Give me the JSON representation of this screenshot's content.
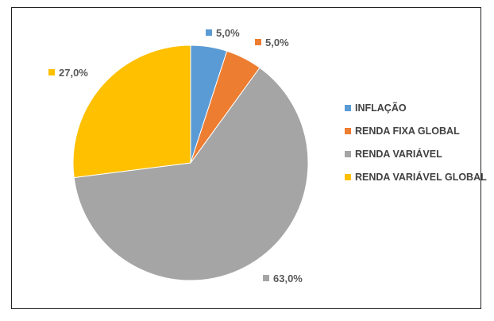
{
  "chart_data": {
    "type": "pie",
    "title": "",
    "slices": [
      {
        "name": "INFLAÇÃO",
        "value": 5.0,
        "label": "5,0%",
        "color": "#5B9BD5"
      },
      {
        "name": "RENDA FIXA GLOBAL",
        "value": 5.0,
        "label": "5,0%",
        "color": "#ED7D31"
      },
      {
        "name": "RENDA VARIÁVEL",
        "value": 63.0,
        "label": "63,0%",
        "color": "#A5A5A5"
      },
      {
        "name": "RENDA VARIÁVEL GLOBAL",
        "value": 27.0,
        "label": "27,0%",
        "color": "#FFC000"
      }
    ],
    "legend_position": "right"
  }
}
